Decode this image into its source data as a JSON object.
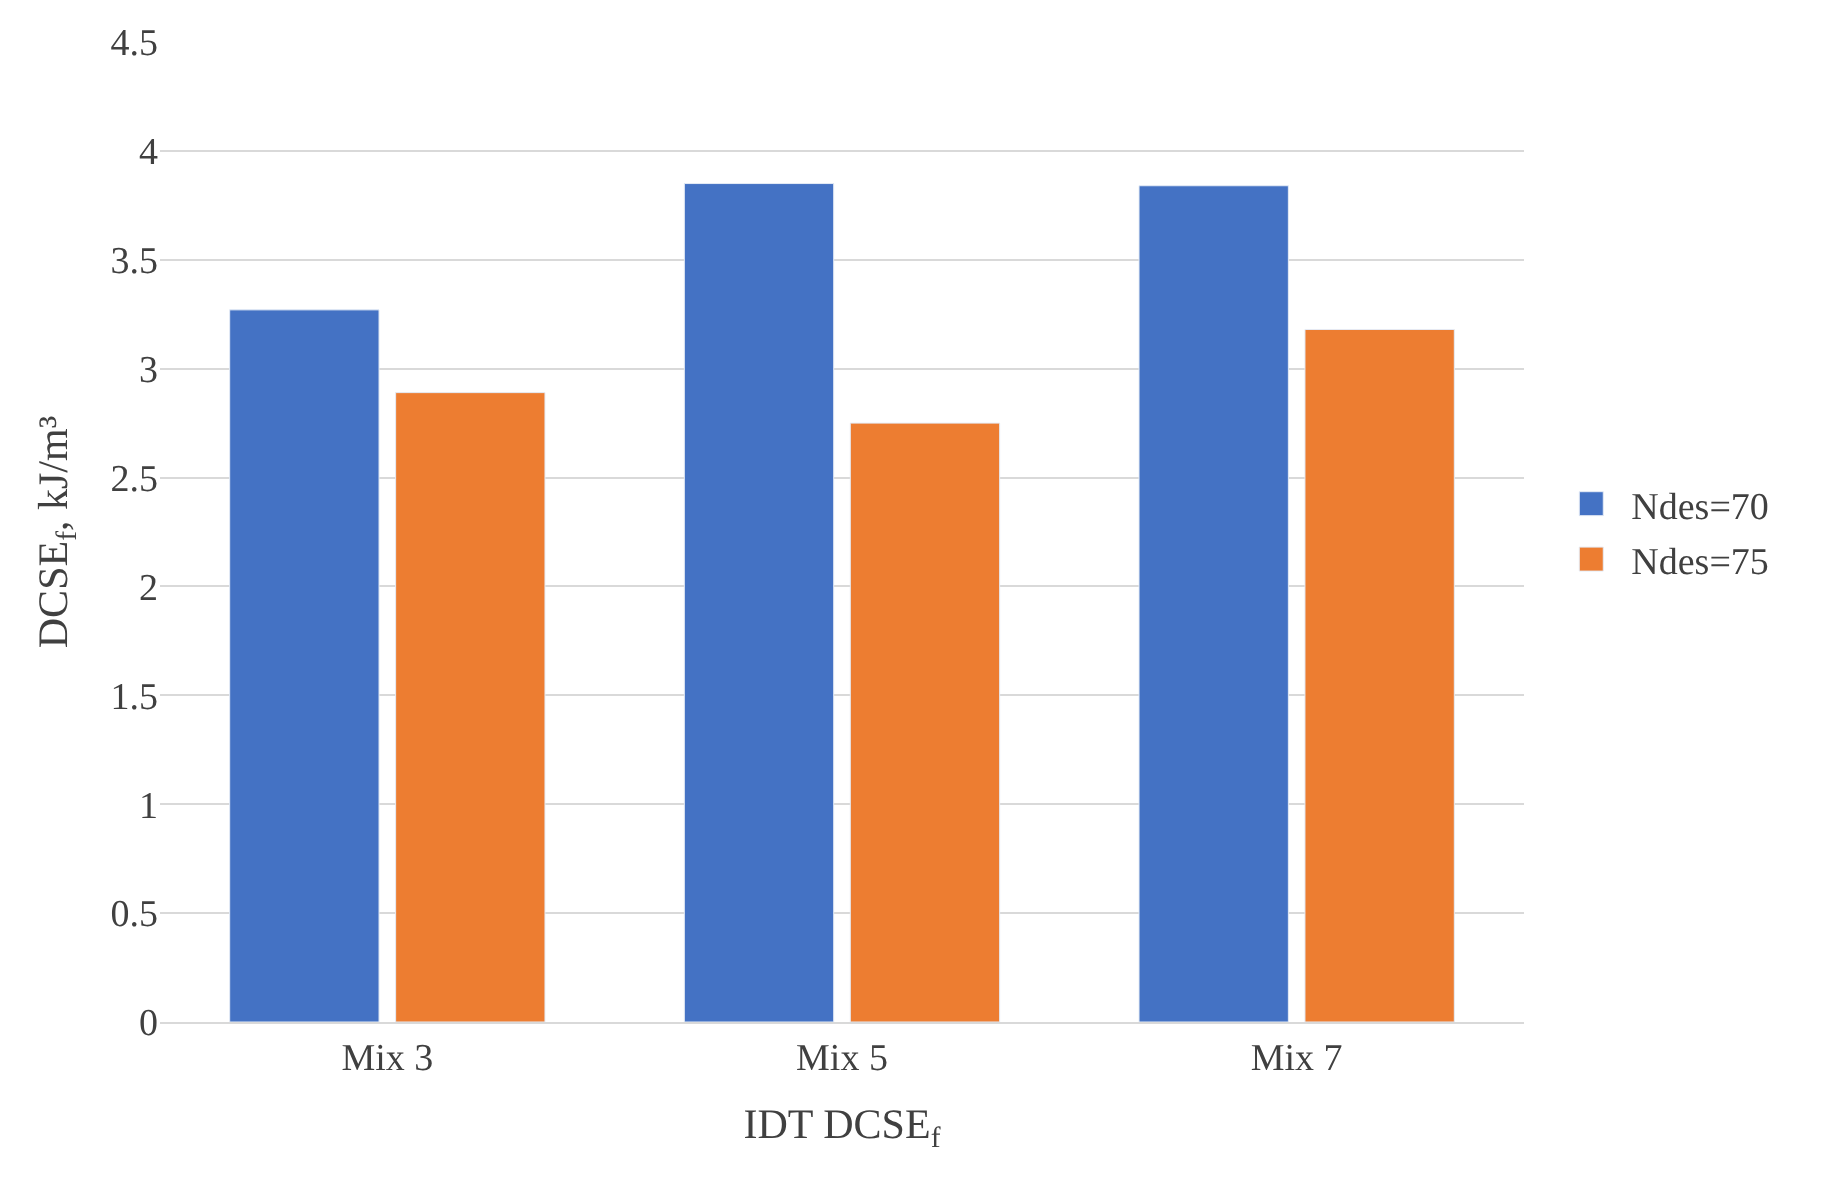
{
  "chart_data": {
    "type": "bar",
    "xlabel": "IDT DCSE$_{f}$",
    "ylabel": "DCSE$_{f}$, kJ/m³",
    "categories": [
      "Mix 3",
      "Mix 5",
      "Mix 7"
    ],
    "series": [
      {
        "name": "Ndes=70",
        "color": "#4472c4",
        "values": [
          3.27,
          3.85,
          3.84
        ]
      },
      {
        "name": "Ndes=75",
        "color": "#ed7d31",
        "values": [
          2.89,
          2.75,
          3.18
        ]
      }
    ],
    "ylim": [
      0,
      4.5
    ],
    "yticks": [
      0,
      0.5,
      1,
      1.5,
      2,
      2.5,
      3,
      3.5,
      4,
      4.5
    ],
    "grid": "y",
    "legend": "right"
  }
}
